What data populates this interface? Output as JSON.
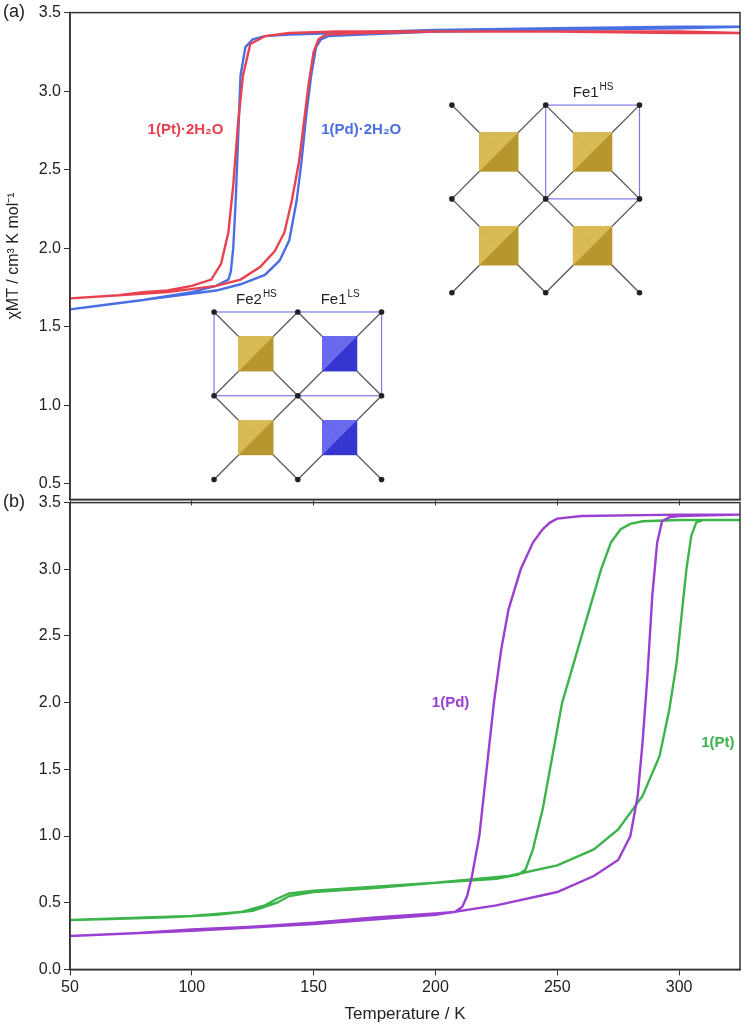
{
  "chart_data": [
    {
      "type": "line",
      "title": "(a)",
      "y_label": "χMT / cm³ K mol⁻¹",
      "xlim": [
        50,
        325
      ],
      "xticks": [
        50,
        100,
        150,
        200,
        250,
        300
      ],
      "ylim": [
        0.4,
        3.5
      ],
      "yticks": [
        0.5,
        {
          "value": 1,
          "label": "1.0"
        },
        1.5,
        {
          "value": 2,
          "label": "2.0"
        },
        2.5,
        {
          "value": 3,
          "label": "3.0"
        },
        3.5
      ],
      "grid": false,
      "tick_labels": "y",
      "series": [
        {
          "name": "1(Pt)·2H₂O",
          "color": "#e8414f",
          "marker": "none",
          "x": [
            325,
            300,
            250,
            200,
            160,
            140,
            130,
            124,
            121,
            119,
            117,
            115,
            112,
            108,
            100,
            90,
            80,
            70,
            60,
            50,
            50,
            70,
            90,
            110,
            120,
            128,
            134,
            138,
            141,
            144,
            146,
            148,
            150,
            152,
            155,
            170,
            200,
            250,
            300,
            325
          ],
          "values": [
            3.37,
            3.38,
            3.38,
            3.38,
            3.38,
            3.37,
            3.35,
            3.3,
            3.1,
            2.8,
            2.4,
            2.1,
            1.9,
            1.8,
            1.76,
            1.73,
            1.72,
            1.7,
            1.69,
            1.68,
            1.68,
            1.7,
            1.72,
            1.76,
            1.8,
            1.88,
            1.98,
            2.1,
            2.3,
            2.55,
            2.8,
            3.05,
            3.25,
            3.33,
            3.36,
            3.37,
            3.38,
            3.38,
            3.37,
            3.37
          ]
        },
        {
          "name": "1(Pd)·2H₂O",
          "color": "#4a6fe3",
          "marker": "none",
          "x": [
            325,
            300,
            250,
            200,
            160,
            140,
            130,
            125,
            122,
            120,
            119,
            118,
            117,
            116,
            115,
            110,
            100,
            80,
            60,
            50,
            50,
            70,
            90,
            110,
            120,
            130,
            136,
            140,
            143,
            145,
            147,
            149,
            151,
            153,
            156,
            170,
            200,
            250,
            300,
            325
          ],
          "values": [
            3.41,
            3.41,
            3.4,
            3.39,
            3.37,
            3.36,
            3.35,
            3.33,
            3.28,
            3.1,
            2.7,
            2.3,
            2.0,
            1.85,
            1.8,
            1.76,
            1.72,
            1.67,
            1.63,
            1.61,
            1.61,
            1.65,
            1.69,
            1.73,
            1.77,
            1.83,
            1.92,
            2.05,
            2.3,
            2.55,
            2.85,
            3.1,
            3.28,
            3.33,
            3.35,
            3.36,
            3.38,
            3.39,
            3.4,
            3.41
          ]
        }
      ],
      "insets": [
        {
          "cells": [
            [
              "HS",
              "HS"
            ],
            [
              "HS",
              "HS"
            ]
          ],
          "labels": [
            {
              "text": "Fe1",
              "sup": "HS"
            }
          ]
        },
        {
          "cells": [
            [
              "HS",
              "LS"
            ],
            [
              "HS",
              "LS"
            ]
          ],
          "labels": [
            {
              "text": "Fe2",
              "sup": "HS"
            },
            {
              "text": "Fe1",
              "sup": "LS"
            }
          ]
        }
      ]
    },
    {
      "type": "line",
      "title": "(b)",
      "x_label": "Temperature / K",
      "xlim": [
        50,
        325
      ],
      "xticks": [
        50,
        100,
        150,
        200,
        250,
        300
      ],
      "ylim": [
        0,
        3.5
      ],
      "yticks": [
        {
          "value": 0,
          "label": "0.0"
        },
        0.5,
        {
          "value": 1,
          "label": "1.0"
        },
        1.5,
        {
          "value": 2,
          "label": "2.0"
        },
        2.5,
        {
          "value": 3,
          "label": "3.0"
        },
        3.5
      ],
      "grid": false,
      "series": [
        {
          "name": "1(Pd)",
          "color": "#9a3fd0",
          "marker": "none",
          "x": [
            325,
            300,
            260,
            250,
            247,
            244,
            240,
            235,
            230,
            227,
            224,
            221,
            218,
            215,
            213,
            211,
            208,
            200,
            175,
            150,
            125,
            100,
            75,
            50,
            50,
            100,
            150,
            200,
            225,
            250,
            265,
            275,
            280,
            283,
            285,
            287,
            289,
            291,
            293,
            296,
            300,
            325
          ],
          "values": [
            3.41,
            3.41,
            3.4,
            3.38,
            3.35,
            3.3,
            3.2,
            3.0,
            2.7,
            2.4,
            2.0,
            1.5,
            1.0,
            0.7,
            0.55,
            0.47,
            0.43,
            0.42,
            0.39,
            0.35,
            0.32,
            0.3,
            0.27,
            0.25,
            0.25,
            0.29,
            0.34,
            0.41,
            0.48,
            0.58,
            0.7,
            0.82,
            1.0,
            1.3,
            1.7,
            2.2,
            2.8,
            3.2,
            3.36,
            3.39,
            3.4,
            3.41
          ]
        },
        {
          "name": "1(Pt)",
          "color": "#3cb44b",
          "marker": "none",
          "x": [
            325,
            300,
            285,
            280,
            276,
            272,
            268,
            264,
            260,
            256,
            252,
            248,
            244,
            240,
            237,
            234,
            225,
            200,
            175,
            150,
            140,
            135,
            125,
            110,
            90,
            70,
            50,
            50,
            100,
            120,
            130,
            135,
            140,
            150,
            200,
            230,
            250,
            265,
            275,
            285,
            292,
            296,
            299,
            301,
            303,
            305,
            307,
            310,
            325
          ],
          "values": [
            3.37,
            3.37,
            3.36,
            3.34,
            3.3,
            3.2,
            3.0,
            2.75,
            2.5,
            2.25,
            2.0,
            1.6,
            1.2,
            0.9,
            0.75,
            0.71,
            0.68,
            0.65,
            0.61,
            0.58,
            0.55,
            0.5,
            0.44,
            0.41,
            0.39,
            0.38,
            0.37,
            0.37,
            0.4,
            0.43,
            0.48,
            0.53,
            0.57,
            0.59,
            0.65,
            0.7,
            0.78,
            0.9,
            1.05,
            1.3,
            1.6,
            1.95,
            2.3,
            2.65,
            3.0,
            3.25,
            3.35,
            3.37,
            3.37
          ]
        }
      ]
    }
  ]
}
